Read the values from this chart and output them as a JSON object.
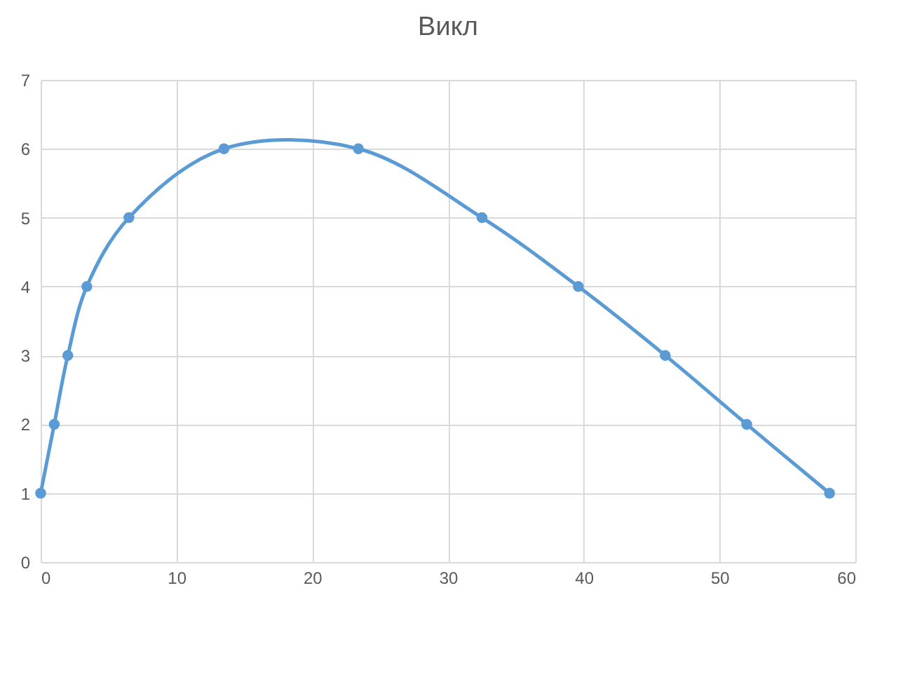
{
  "chart_data": {
    "type": "line",
    "title": "Викл",
    "x": [
      0,
      1,
      2,
      3.4,
      6.5,
      13.5,
      23.4,
      32.5,
      39.6,
      46,
      52,
      58.1
    ],
    "series": [
      {
        "color": "#5b9bd5",
        "values": [
          1,
          2,
          3,
          4,
          5,
          6,
          6,
          5,
          4,
          3,
          2,
          1
        ]
      }
    ],
    "xlim": [
      0,
      60
    ],
    "xticks": [
      0,
      10,
      20,
      30,
      40,
      50,
      60
    ],
    "ylim": [
      0,
      7
    ],
    "yticks": [
      0,
      1,
      2,
      3,
      4,
      5,
      6,
      7
    ],
    "grid": true,
    "marker": "circle",
    "line_style": "solid"
  }
}
